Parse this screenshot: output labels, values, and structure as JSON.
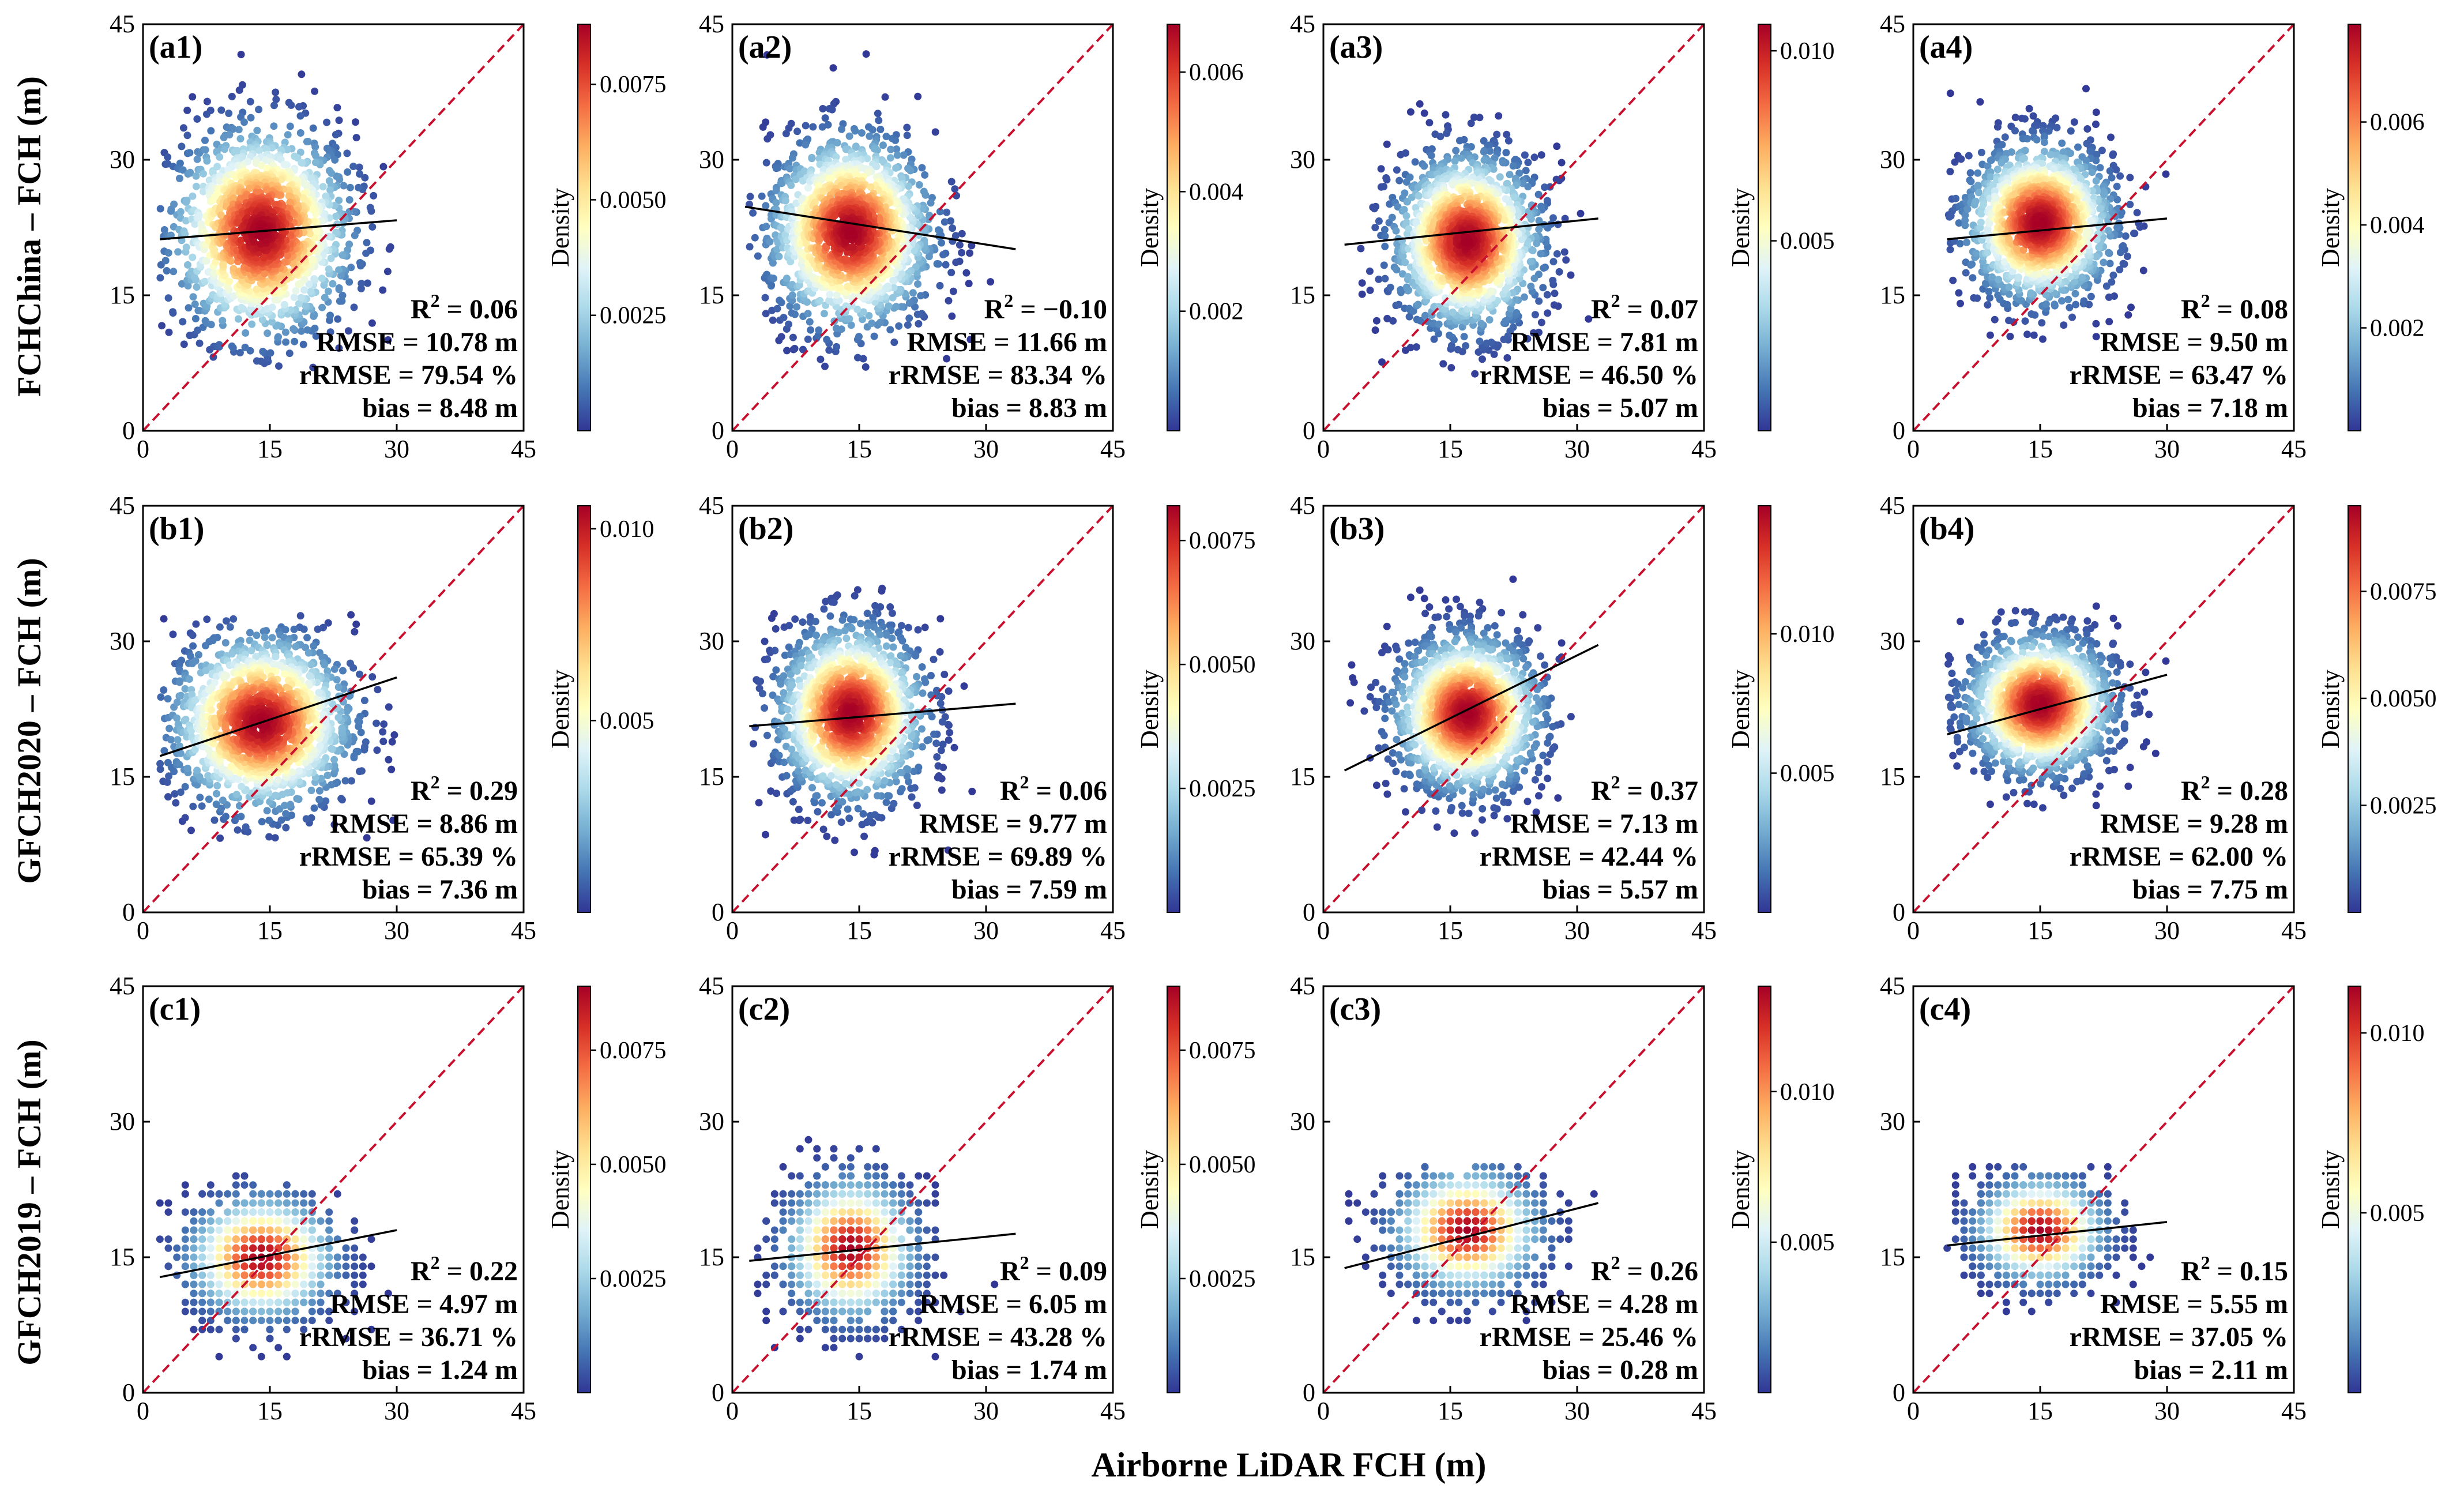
{
  "figure": {
    "xlabel": "Airborne LiDAR FCH (m)",
    "row_labels": [
      "FCHChina – FCH (m)",
      "GFCH2020 – FCH (m)",
      "GFCH2019 – FCH (m)"
    ],
    "colorbar_label": "Density",
    "colormap": [
      "#313695",
      "#4575b4",
      "#74add1",
      "#abd9e9",
      "#e0f3f8",
      "#ffffbf",
      "#fee090",
      "#fdae61",
      "#f46d43",
      "#d73027",
      "#a50026"
    ],
    "one_to_one_color": "#c8102e",
    "fit_color": "#000000"
  },
  "chart_data": [
    {
      "type": "scatter",
      "label": "(a1)",
      "xlim": [
        0,
        45
      ],
      "ylim": [
        0,
        45
      ],
      "xticks": [
        0,
        15,
        30,
        45
      ],
      "yticks": [
        0,
        15,
        30,
        45
      ],
      "cluster": {
        "cx": 14,
        "cy": 22,
        "sx": 5.5,
        "sy": 6.0,
        "xmin": 2,
        "xmax": 30,
        "ymin": 7,
        "ymax": 43,
        "grid": false
      },
      "fit": {
        "x": [
          2,
          30
        ],
        "y": [
          21.2,
          23.3
        ]
      },
      "r2": "0.06",
      "rmse": "RMSE = 10.78 m",
      "rrmse": "rRMSE = 79.54 %",
      "bias": "bias = 8.48 m",
      "colorbar": {
        "max": 0.0088,
        "ticks": [
          "0.0025",
          "0.0050",
          "0.0075"
        ],
        "values": [
          0.0025,
          0.005,
          0.0075
        ]
      }
    },
    {
      "type": "scatter",
      "label": "(a2)",
      "xlim": [
        0,
        45
      ],
      "ylim": [
        0,
        45
      ],
      "xticks": [
        0,
        15,
        30,
        45
      ],
      "yticks": [
        0,
        15,
        30,
        45
      ],
      "cluster": {
        "cx": 14,
        "cy": 22,
        "sx": 5.0,
        "sy": 5.5,
        "xmin": 2,
        "xmax": 33,
        "ymin": 6,
        "ymax": 42,
        "grid": false
      },
      "fit": {
        "x": [
          1.5,
          33.5
        ],
        "y": [
          24.8,
          20.1
        ]
      },
      "r2": "−0.10",
      "rmse": "RMSE = 11.66 m",
      "rrmse": "rRMSE = 83.34 %",
      "bias": "bias = 8.83 m",
      "colorbar": {
        "max": 0.0068,
        "ticks": [
          "0.002",
          "0.004",
          "0.006"
        ],
        "values": [
          0.002,
          0.004,
          0.006
        ]
      }
    },
    {
      "type": "scatter",
      "label": "(a3)",
      "xlim": [
        0,
        45
      ],
      "ylim": [
        0,
        45
      ],
      "xticks": [
        0,
        15,
        30,
        45
      ],
      "yticks": [
        0,
        15,
        30,
        45
      ],
      "cluster": {
        "cx": 17,
        "cy": 21,
        "sx": 4.5,
        "sy": 5.0,
        "xmin": 3,
        "xmax": 33,
        "ymin": 6,
        "ymax": 39,
        "grid": false
      },
      "fit": {
        "x": [
          2.5,
          32.5
        ],
        "y": [
          20.6,
          23.5
        ]
      },
      "r2": "0.07",
      "rmse": "RMSE = 7.81 m",
      "rrmse": "rRMSE = 46.50 %",
      "bias": "bias = 5.07 m",
      "colorbar": {
        "max": 0.0107,
        "ticks": [
          "0.005",
          "0.010"
        ],
        "values": [
          0.005,
          0.01
        ]
      }
    },
    {
      "type": "scatter",
      "label": "(a4)",
      "xlim": [
        0,
        45
      ],
      "ylim": [
        0,
        45
      ],
      "xticks": [
        0,
        15,
        30,
        45
      ],
      "yticks": [
        0,
        15,
        30,
        45
      ],
      "cluster": {
        "cx": 15,
        "cy": 23,
        "sx": 4.5,
        "sy": 4.5,
        "xmin": 4,
        "xmax": 30,
        "ymin": 10,
        "ymax": 40,
        "grid": false
      },
      "fit": {
        "x": [
          4,
          30
        ],
        "y": [
          21.2,
          23.5
        ]
      },
      "r2": "0.08",
      "rmse": "RMSE = 9.50 m",
      "rrmse": "rRMSE = 63.47 %",
      "bias": "bias = 7.18 m",
      "colorbar": {
        "max": 0.0079,
        "ticks": [
          "0.002",
          "0.004",
          "0.006"
        ],
        "values": [
          0.002,
          0.004,
          0.006
        ]
      }
    },
    {
      "type": "scatter",
      "label": "(b1)",
      "xlim": [
        0,
        45
      ],
      "ylim": [
        0,
        45
      ],
      "xticks": [
        0,
        15,
        30,
        45
      ],
      "yticks": [
        0,
        15,
        30,
        45
      ],
      "cluster": {
        "cx": 14,
        "cy": 21,
        "sx": 5.5,
        "sy": 5.0,
        "xmin": 2,
        "xmax": 30,
        "ymin": 8,
        "ymax": 33,
        "grid": false
      },
      "fit": {
        "x": [
          2,
          30
        ],
        "y": [
          17.3,
          26.0
        ]
      },
      "r2": "0.29",
      "rmse": "RMSE = 8.86 m",
      "rrmse": "rRMSE = 65.39 %",
      "bias": "bias = 7.36 m",
      "colorbar": {
        "max": 0.0106,
        "ticks": [
          "0.005",
          "0.010"
        ],
        "values": [
          0.005,
          0.01
        ]
      }
    },
    {
      "type": "scatter",
      "label": "(b2)",
      "xlim": [
        0,
        45
      ],
      "ylim": [
        0,
        45
      ],
      "xticks": [
        0,
        15,
        30,
        45
      ],
      "yticks": [
        0,
        15,
        30,
        45
      ],
      "cluster": {
        "cx": 14,
        "cy": 22,
        "sx": 4.5,
        "sy": 5.0,
        "xmin": 2,
        "xmax": 33,
        "ymin": 6,
        "ymax": 37,
        "grid": false
      },
      "fit": {
        "x": [
          2,
          33.5
        ],
        "y": [
          20.6,
          23.1
        ]
      },
      "r2": "0.06",
      "rmse": "RMSE = 9.77 m",
      "rrmse": "rRMSE = 69.89 %",
      "bias": "bias = 7.59 m",
      "colorbar": {
        "max": 0.0082,
        "ticks": [
          "0.0025",
          "0.0050",
          "0.0075"
        ],
        "values": [
          0.0025,
          0.005,
          0.0075
        ]
      }
    },
    {
      "type": "scatter",
      "label": "(b3)",
      "xlim": [
        0,
        45
      ],
      "ylim": [
        0,
        45
      ],
      "xticks": [
        0,
        15,
        30,
        45
      ],
      "yticks": [
        0,
        15,
        30,
        45
      ],
      "cluster": {
        "cx": 17,
        "cy": 22,
        "sx": 4.5,
        "sy": 4.5,
        "xmin": 3,
        "xmax": 33,
        "ymin": 8,
        "ymax": 38,
        "grid": false
      },
      "fit": {
        "x": [
          2.5,
          32.5
        ],
        "y": [
          15.7,
          29.6
        ]
      },
      "r2": "0.37",
      "rmse": "RMSE = 7.13 m",
      "rrmse": "rRMSE = 42.44 %",
      "bias": "bias = 5.57 m",
      "colorbar": {
        "max": 0.0146,
        "ticks": [
          "0.005",
          "0.010"
        ],
        "values": [
          0.005,
          0.01
        ]
      }
    },
    {
      "type": "scatter",
      "label": "(b4)",
      "xlim": [
        0,
        45
      ],
      "ylim": [
        0,
        45
      ],
      "xticks": [
        0,
        15,
        30,
        45
      ],
      "yticks": [
        0,
        15,
        30,
        45
      ],
      "cluster": {
        "cx": 15,
        "cy": 23,
        "sx": 4.5,
        "sy": 4.0,
        "xmin": 4,
        "xmax": 30,
        "ymin": 10,
        "ymax": 34,
        "grid": false
      },
      "fit": {
        "x": [
          4,
          30
        ],
        "y": [
          19.7,
          26.3
        ]
      },
      "r2": "0.28",
      "rmse": "RMSE = 9.28 m",
      "rrmse": "rRMSE = 62.00 %",
      "bias": "bias = 7.75 m",
      "colorbar": {
        "max": 0.0095,
        "ticks": [
          "0.0025",
          "0.0050",
          "0.0075"
        ],
        "values": [
          0.0025,
          0.005,
          0.0075
        ]
      }
    },
    {
      "type": "scatter",
      "label": "(c1)",
      "xlim": [
        0,
        45
      ],
      "ylim": [
        0,
        45
      ],
      "xticks": [
        0,
        15,
        30,
        45
      ],
      "yticks": [
        0,
        15,
        30,
        45
      ],
      "cluster": {
        "cx": 14,
        "cy": 15,
        "sx": 4.5,
        "sy": 3.5,
        "xmin": 2,
        "xmax": 30,
        "ymin": 3,
        "ymax": 24,
        "grid": true
      },
      "fit": {
        "x": [
          2,
          30
        ],
        "y": [
          12.8,
          18.0
        ]
      },
      "r2": "0.22",
      "rmse": "RMSE = 4.97 m",
      "rrmse": "rRMSE = 36.71 %",
      "bias": "bias = 1.24 m",
      "colorbar": {
        "max": 0.0089,
        "ticks": [
          "0.0025",
          "0.0050",
          "0.0075"
        ],
        "values": [
          0.0025,
          0.005,
          0.0075
        ]
      }
    },
    {
      "type": "scatter",
      "label": "(c2)",
      "xlim": [
        0,
        45
      ],
      "ylim": [
        0,
        45
      ],
      "xticks": [
        0,
        15,
        30,
        45
      ],
      "yticks": [
        0,
        15,
        30,
        45
      ],
      "cluster": {
        "cx": 14,
        "cy": 16,
        "sx": 4.0,
        "sy": 4.0,
        "xmin": 2,
        "xmax": 33,
        "ymin": 3,
        "ymax": 35,
        "grid": true
      },
      "fit": {
        "x": [
          2,
          33.5
        ],
        "y": [
          14.6,
          17.6
        ]
      },
      "r2": "0.09",
      "rmse": "RMSE = 6.05 m",
      "rrmse": "rRMSE = 43.28 %",
      "bias": "bias = 1.74 m",
      "colorbar": {
        "max": 0.0089,
        "ticks": [
          "0.0025",
          "0.0050",
          "0.0075"
        ],
        "values": [
          0.0025,
          0.005,
          0.0075
        ]
      }
    },
    {
      "type": "scatter",
      "label": "(c3)",
      "xlim": [
        0,
        45
      ],
      "ylim": [
        0,
        45
      ],
      "xticks": [
        0,
        15,
        30,
        45
      ],
      "yticks": [
        0,
        15,
        30,
        45
      ],
      "cluster": {
        "cx": 17,
        "cy": 18,
        "sx": 4.5,
        "sy": 3.5,
        "xmin": 3,
        "xmax": 33,
        "ymin": 8,
        "ymax": 25,
        "grid": true
      },
      "fit": {
        "x": [
          2.5,
          32.5
        ],
        "y": [
          13.8,
          21.0
        ]
      },
      "r2": "0.26",
      "rmse": "RMSE = 4.28 m",
      "rrmse": "rRMSE = 25.46 %",
      "bias": "bias = 0.28 m",
      "colorbar": {
        "max": 0.0135,
        "ticks": [
          "0.005",
          "0.010"
        ],
        "values": [
          0.005,
          0.01
        ]
      }
    },
    {
      "type": "scatter",
      "label": "(c4)",
      "xlim": [
        0,
        45
      ],
      "ylim": [
        0,
        45
      ],
      "xticks": [
        0,
        15,
        30,
        45
      ],
      "yticks": [
        0,
        15,
        30,
        45
      ],
      "cluster": {
        "cx": 15,
        "cy": 18,
        "sx": 4.0,
        "sy": 3.0,
        "xmin": 4,
        "xmax": 30,
        "ymin": 7,
        "ymax": 25,
        "grid": true
      },
      "fit": {
        "x": [
          4,
          30
        ],
        "y": [
          16.3,
          18.9
        ]
      },
      "r2": "0.15",
      "rmse": "RMSE = 5.55 m",
      "rrmse": "rRMSE = 37.05 %",
      "bias": "bias = 2.11 m",
      "colorbar": {
        "max": 0.0113,
        "ticks": [
          "0.005",
          "0.010"
        ],
        "values": [
          0.005,
          0.01
        ]
      }
    }
  ]
}
